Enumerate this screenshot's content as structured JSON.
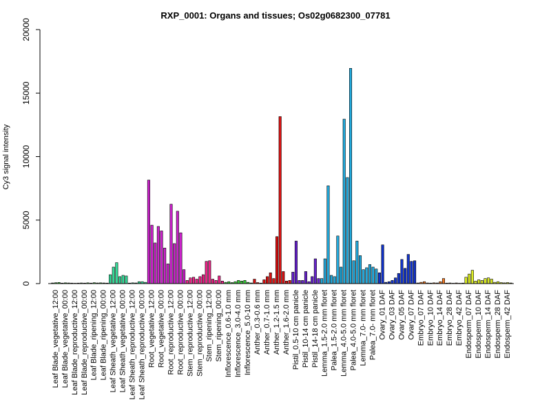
{
  "chart_data": {
    "type": "bar",
    "title": "RXP_0001: Organs and tissues; Os02g0682300_07781",
    "xlabel": "",
    "ylabel": "Cy3 signal intensity",
    "ylim": [
      0,
      20000
    ],
    "yticks": [
      0,
      5000,
      10000,
      15000,
      20000
    ],
    "grid": false,
    "groups": [
      {
        "label": "Leaf Blade_vegetative_12:00",
        "color": "#33cc33",
        "values": [
          50,
          70,
          90
        ]
      },
      {
        "label": "Leaf Blade_vegetative_00:00",
        "color": "#33cc33",
        "values": [
          40,
          60,
          50
        ]
      },
      {
        "label": "Leaf Blade_reproductive_12:00",
        "color": "#33cc33",
        "values": [
          40,
          30,
          40
        ]
      },
      {
        "label": "Leaf Blade_reproductive_00:00",
        "color": "#33cc33",
        "values": [
          50,
          40,
          60
        ]
      },
      {
        "label": "Leaf Blade_ripening_12:00",
        "color": "#33cc33",
        "values": [
          40,
          70,
          50
        ]
      },
      {
        "label": "Leaf Blade_ripening_00:00",
        "color": "#33cc33",
        "values": [
          60,
          50,
          40
        ]
      },
      {
        "label": "Leaf Sheath_vegetative_12:00",
        "color": "#33dd99",
        "values": [
          700,
          1300,
          1650
        ]
      },
      {
        "label": "Leaf Sheath_vegetative_00:00",
        "color": "#33dd99",
        "values": [
          550,
          650,
          600
        ]
      },
      {
        "label": "Leaf Sheath_reproductive_12:00",
        "color": "#33dd99",
        "values": [
          40,
          60,
          50
        ]
      },
      {
        "label": "Leaf Sheath_reproductive_00:00",
        "color": "#33dd99",
        "values": [
          150,
          150,
          100
        ]
      },
      {
        "label": "Root_vegetative_12:00",
        "color": "#cc22cc",
        "values": [
          8150,
          4600,
          3200
        ]
      },
      {
        "label": "Root_vegetative_00:00",
        "color": "#cc22cc",
        "values": [
          4500,
          4150,
          2800
        ]
      },
      {
        "label": "Root_reproductive_12:00",
        "color": "#cc22cc",
        "values": [
          1550,
          6250,
          3150
        ]
      },
      {
        "label": "Root_reproductive_00:00",
        "color": "#cc22cc",
        "values": [
          5700,
          4000,
          1100
        ]
      },
      {
        "label": "Stem_reproductive_12:00",
        "color": "#ee2288",
        "values": [
          250,
          450,
          500
        ]
      },
      {
        "label": "Stem_reproductive_00:00",
        "color": "#ee2288",
        "values": [
          350,
          550,
          700
        ]
      },
      {
        "label": "Stem_ripening_12:00",
        "color": "#ee2288",
        "values": [
          1750,
          1800,
          350
        ]
      },
      {
        "label": "Stem_ripening_00:00",
        "color": "#ee2288",
        "values": [
          250,
          600,
          200
        ]
      },
      {
        "label": "Inflorescence_0.6-1.0 mm",
        "color": "#33cc33",
        "values": [
          100,
          150,
          80
        ]
      },
      {
        "label": "Inflorescence_3.0-4.0 mm",
        "color": "#33cc33",
        "values": [
          150,
          250,
          200
        ]
      },
      {
        "label": "Inflorescence_5.0-10 mm",
        "color": "#33cc33",
        "values": [
          250,
          100,
          50
        ]
      },
      {
        "label": "Anther_0.3-0.6 mm",
        "color": "#dd1111",
        "values": [
          350,
          80,
          40
        ]
      },
      {
        "label": "Anther_0.7-1.0 mm",
        "color": "#dd1111",
        "values": [
          300,
          550,
          850
        ]
      },
      {
        "label": "Anther_1.2-1.5 mm",
        "color": "#dd1111",
        "values": [
          400,
          3700,
          13150
        ]
      },
      {
        "label": "Anther_1.6-2.0 mm",
        "color": "#dd1111",
        "values": [
          950,
          200,
          250
        ]
      },
      {
        "label": "Pistil_0.5-10 cm panicle",
        "color": "#6622cc",
        "values": [
          900,
          3350,
          250
        ]
      },
      {
        "label": "Pistil_10-14 cm panicle",
        "color": "#6622cc",
        "values": [
          250,
          950,
          150
        ]
      },
      {
        "label": "Pistil_14-18 cm panicle",
        "color": "#6622cc",
        "values": [
          550,
          1950,
          400
        ]
      },
      {
        "label": "Lemma_1.5-2.0 mm floret",
        "color": "#22aadd",
        "values": [
          400,
          1950,
          7700
        ]
      },
      {
        "label": "Palea_1.5-2.0 mm floret",
        "color": "#22aadd",
        "values": [
          650,
          550,
          3750
        ]
      },
      {
        "label": "Lemma_4.0-5.0 mm floret",
        "color": "#22aadd",
        "values": [
          1300,
          12950,
          8350
        ]
      },
      {
        "label": "Palea_4.0-5.0 mm floret",
        "color": "#22aadd",
        "values": [
          16950,
          1800,
          3350
        ]
      },
      {
        "label": "Lemma_7.0- mm floret",
        "color": "#22aadd",
        "values": [
          2200,
          1100,
          1250
        ]
      },
      {
        "label": "Palea_7.0- mm floret",
        "color": "#22aadd",
        "values": [
          1500,
          1300,
          1150
        ]
      },
      {
        "label": "Ovary_01 DAF",
        "color": "#1133cc",
        "values": [
          850,
          3050,
          100
        ]
      },
      {
        "label": "Ovary_03 DAF",
        "color": "#1133cc",
        "values": [
          150,
          250,
          450
        ]
      },
      {
        "label": "Ovary_05 DAF",
        "color": "#1133cc",
        "values": [
          800,
          1900,
          1200
        ]
      },
      {
        "label": "Ovary_07 DAF",
        "color": "#1133cc",
        "values": [
          2300,
          1750,
          1800
        ]
      },
      {
        "label": "Embryo_07 DAF",
        "color": "#ee7722",
        "values": [
          50,
          100,
          150
        ]
      },
      {
        "label": "Embryo_10 DAF",
        "color": "#ee7722",
        "values": [
          50,
          40,
          60
        ]
      },
      {
        "label": "Embryo_14 DAF",
        "color": "#ee7722",
        "values": [
          50,
          150,
          400
        ]
      },
      {
        "label": "Embryo_28 DAF",
        "color": "#ee7722",
        "values": [
          40,
          50,
          30
        ]
      },
      {
        "label": "Embryo_42 DAF",
        "color": "#ee7722",
        "values": [
          50,
          30,
          40
        ]
      },
      {
        "label": "Endosperm_07 DAF",
        "color": "#ddee22",
        "values": [
          500,
          750,
          1050
        ]
      },
      {
        "label": "Endosperm_10 DAF",
        "color": "#ddee22",
        "values": [
          200,
          300,
          250
        ]
      },
      {
        "label": "Endosperm_14 DAF",
        "color": "#ddee22",
        "values": [
          400,
          450,
          350
        ]
      },
      {
        "label": "Endosperm_28 DAF",
        "color": "#ddee22",
        "values": [
          100,
          150,
          80
        ]
      },
      {
        "label": "Endosperm_42 DAF",
        "color": "#ddee22",
        "values": [
          60,
          80,
          50
        ]
      }
    ],
    "tick_labels": [
      "Leaf Blade_vegetative_12:00",
      "Leaf Blade_vegetative_00:00",
      "Leaf Blade_reproductive_12:00",
      "Leaf Blade_reproductive_00:00",
      "Leaf Blade_ripening_12:00",
      "Leaf Blade_ripening_00:00",
      "Leaf Sheath_vegetative_12:00",
      "Leaf Sheath_vegetative_00:00",
      "Leaf Sheath_reproductive_12:00",
      "Leaf Sheath_reproductive_00:00",
      "Root_vegetative_12:00",
      "Root_vegetative_00:00",
      "Root_reproductive_12:00",
      "Root_reproductive_00:00",
      "Stem_reproductive_12:00",
      "Stem_reproductive_00:00",
      "Stem_ripening_12:00",
      "Stem_ripening_00:00",
      "Inflorescence_0.6-1.0 mm",
      "Inflorescence_3.0-4.0 mm",
      "Inflorescence_5.0-10 mm",
      "Anther_0.3-0.6 mm",
      "Anther_0.7-1.0 mm",
      "Anther_1.2-1.5 mm",
      "Anther_1.6-2.0 mm",
      "Pistil_0.5-10 cm panicle",
      "Pistil_10-14 cm panicle",
      "Pistil_14-18 cm panicle",
      "Lemma_1.5-2.0 mm floret",
      "Palea_1.5-2.0 mm floret",
      "Lemma_4.0-5.0 mm floret",
      "Palea_4.0-5.0 mm floret",
      "Lemma_7.0- mm floret",
      "Palea_7.0- mm floret",
      "Ovary_01 DAF",
      "Ovary_03 DAF",
      "Ovary_05 DAF",
      "Ovary_07 DAF",
      "Embryo_07 DAF",
      "Embryo_10 DAF",
      "Embryo_14 DAF",
      "Embryo_28 DAF",
      "Embryo_42 DAF",
      "Endosperm_07 DAF",
      "Endosperm_10 DAF",
      "Endosperm_14 DAF",
      "Endosperm_28 DAF",
      "Endosperm_42 DAF"
    ]
  }
}
